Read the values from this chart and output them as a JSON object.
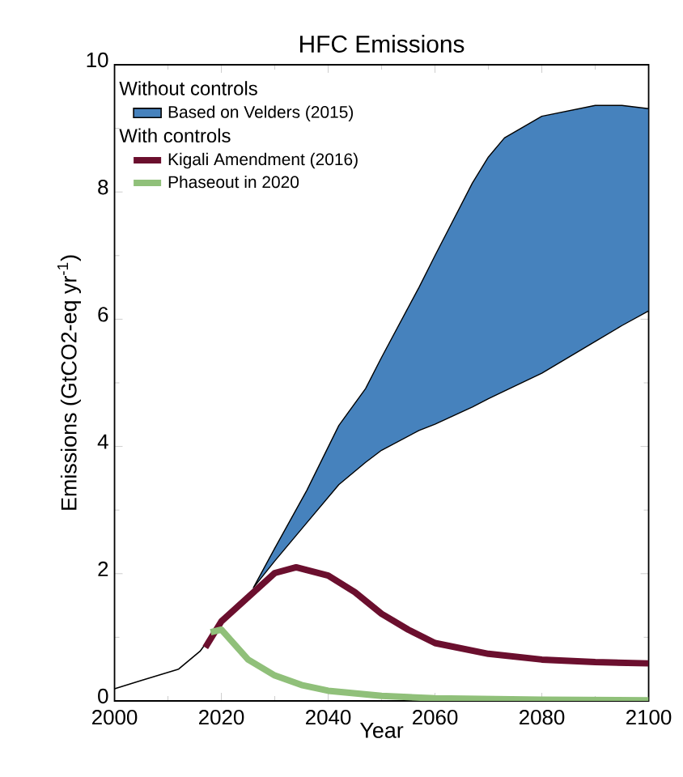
{
  "chart_data": {
    "type": "line",
    "title": "HFC Emissions",
    "xlabel": "Year",
    "ylabel": "Emissions (GtCO2-eq yr$^{-1}$)",
    "xlim": [
      2000,
      2100
    ],
    "ylim": [
      0,
      10
    ],
    "xticks": [
      2000,
      2020,
      2040,
      2060,
      2080,
      2100
    ],
    "yticks": [
      0,
      2,
      4,
      6,
      8,
      10
    ],
    "legend": "top left",
    "annotations": [
      "Without controls",
      "With controls"
    ],
    "series": [
      {
        "name": "Based on Velders (2015)",
        "color": "#4682bd",
        "x": [
          2026,
          2030,
          2036,
          2042,
          2047,
          2050,
          2057,
          2060,
          2067,
          2070,
          2073,
          2080,
          2090,
          2095,
          2100
        ],
        "values": [
          null,
          null,
          null,
          null,
          null,
          null,
          null,
          null,
          null,
          null,
          null,
          null,
          null,
          null,
          null
        ],
        "upper": [
          1.78,
          2.4,
          3.31,
          4.33,
          4.91,
          5.4,
          6.5,
          7.0,
          8.14,
          8.55,
          8.85,
          9.19,
          9.36,
          9.36,
          9.31
        ],
        "lower": [
          1.78,
          2.2,
          2.8,
          3.4,
          3.75,
          3.94,
          4.25,
          4.35,
          4.62,
          4.75,
          4.87,
          5.15,
          5.65,
          5.9,
          6.13
        ]
      },
      {
        "color": "#000000",
        "x": [
          2000,
          2005,
          2012,
          2016,
          2019,
          2022,
          2024
        ],
        "values": [
          0.19,
          0.32,
          0.5,
          0.78,
          1.12,
          1.4,
          1.6
        ]
      },
      {
        "name": "Kigali Amendment (2016)",
        "color": "#6b0f2e",
        "x": [
          2017,
          2020,
          2025,
          2030,
          2034,
          2040,
          2045,
          2050,
          2055,
          2060,
          2070,
          2080,
          2090,
          2100
        ],
        "values": [
          0.84,
          1.25,
          1.63,
          2.01,
          2.1,
          1.97,
          1.71,
          1.37,
          1.12,
          0.91,
          0.74,
          0.65,
          0.61,
          0.59
        ]
      },
      {
        "name": "Phaseout in 2020",
        "color": "#90c07a",
        "x": [
          2018,
          2020,
          2025,
          2030,
          2035,
          2040,
          2050,
          2060,
          2080,
          2100
        ],
        "values": [
          1.08,
          1.12,
          0.65,
          0.4,
          0.25,
          0.16,
          0.08,
          0.04,
          0.02,
          0.01
        ]
      }
    ]
  }
}
